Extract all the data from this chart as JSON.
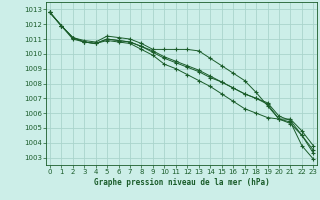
{
  "title": "Graphe pression niveau de la mer (hPa)",
  "bg_color": "#cceee8",
  "grid_color": "#aad4cc",
  "line_color": "#1a5c2a",
  "ylim": [
    1002.5,
    1013.5
  ],
  "xlim": [
    -0.3,
    23.3
  ],
  "yticks": [
    1003,
    1004,
    1005,
    1006,
    1007,
    1008,
    1009,
    1010,
    1011,
    1012,
    1013
  ],
  "xticks": [
    0,
    1,
    2,
    3,
    4,
    5,
    6,
    7,
    8,
    9,
    10,
    11,
    12,
    13,
    14,
    15,
    16,
    17,
    18,
    19,
    20,
    21,
    22,
    23
  ],
  "series": [
    [
      1012.8,
      1011.9,
      1011.1,
      1010.8,
      1010.7,
      1010.9,
      1010.8,
      1010.7,
      1010.3,
      1009.9,
      1009.3,
      1009.0,
      1008.6,
      1008.2,
      1007.8,
      1007.3,
      1006.8,
      1006.3,
      1006.0,
      1005.7,
      1005.6,
      1005.6,
      1004.8,
      1003.8
    ],
    [
      1012.8,
      1011.9,
      1011.1,
      1010.8,
      1010.7,
      1011.0,
      1010.9,
      1010.8,
      1010.5,
      1010.1,
      1009.7,
      1009.4,
      1009.1,
      1008.8,
      1008.4,
      1008.1,
      1007.7,
      1007.3,
      1007.0,
      1006.7,
      1005.8,
      1005.5,
      1004.5,
      1003.5
    ],
    [
      1012.8,
      1011.9,
      1011.1,
      1010.9,
      1010.8,
      1011.2,
      1011.1,
      1011.0,
      1010.7,
      1010.3,
      1010.3,
      1010.3,
      1010.3,
      1010.2,
      1009.7,
      1009.2,
      1008.7,
      1008.2,
      1007.4,
      1006.5,
      1005.6,
      1005.4,
      1003.8,
      1002.9
    ],
    [
      1012.8,
      1011.9,
      1011.0,
      1010.8,
      1010.7,
      1011.0,
      1010.9,
      1010.8,
      1010.5,
      1010.2,
      1009.8,
      1009.5,
      1009.2,
      1008.9,
      1008.5,
      1008.1,
      1007.7,
      1007.3,
      1007.0,
      1006.6,
      1005.6,
      1005.3,
      1004.5,
      1003.3
    ]
  ]
}
